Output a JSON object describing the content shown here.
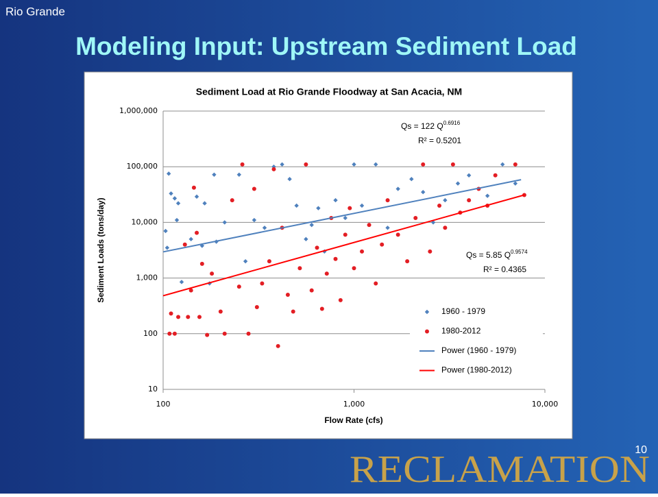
{
  "header": {
    "section": "Rio Grande",
    "title": "Modeling Input: Upstream Sediment Load",
    "page_number": "10",
    "logo": "RECLAMATION"
  },
  "chart_data": {
    "type": "scatter",
    "title": "Sediment Load at Rio Grande Floodway at San Acacia, NM",
    "x_label": "Flow Rate (cfs)",
    "y_label": "Sediment Loads (tons/day)",
    "xscale": "log",
    "yscale": "log",
    "xlim": [
      100,
      10000
    ],
    "ylim": [
      10,
      1000000
    ],
    "xticks": [
      100,
      {
        "value": 1000,
        "label": "1,000"
      },
      {
        "value": 10000,
        "label": "10,000"
      }
    ],
    "yticks": [
      10,
      100,
      {
        "value": 1000,
        "label": "1,000"
      },
      {
        "value": 10000,
        "label": "10,000"
      },
      {
        "value": 100000,
        "label": "100,000"
      },
      {
        "value": 1000000,
        "label": "1,000,000"
      }
    ],
    "grid": true,
    "legend": "lower right",
    "annotations": [
      {
        "text": "Qs = 122 Q",
        "sup": "0.6916",
        "r2": "R² = 0.5201"
      },
      {
        "text": "Qs = 5.85 Q",
        "sup": "0.9574",
        "r2": "R² = 0.4365"
      }
    ],
    "series": [
      {
        "name": "1960 - 1979",
        "mark": "diamond",
        "color": "#4f81bd",
        "x": [
          103,
          105,
          107,
          110,
          115,
          118,
          120,
          125,
          140,
          150,
          160,
          165,
          175,
          185,
          190,
          210,
          250,
          270,
          300,
          340,
          380,
          420,
          460,
          500,
          560,
          600,
          650,
          700,
          800,
          900,
          1000,
          1100,
          1300,
          1500,
          1700,
          2000,
          2300,
          2600,
          3000,
          3500,
          4000,
          5000,
          6000,
          7000
        ],
        "values": [
          7000,
          3500,
          75000,
          33000,
          27000,
          11000,
          22000,
          850,
          5000,
          29000,
          3800,
          22000,
          800,
          72000,
          4500,
          10000,
          72000,
          2000,
          11000,
          8000,
          100000,
          110000,
          60000,
          20000,
          5000,
          9000,
          18000,
          3000,
          25000,
          12000,
          110000,
          20000,
          110000,
          8000,
          40000,
          60000,
          35000,
          10000,
          25000,
          50000,
          70000,
          30000,
          110000,
          50000
        ]
      },
      {
        "name": "1980-2012",
        "mark": "circle",
        "color": "#e31e24",
        "x": [
          108,
          110,
          115,
          120,
          130,
          135,
          140,
          145,
          150,
          155,
          160,
          170,
          180,
          200,
          210,
          230,
          250,
          260,
          280,
          300,
          310,
          330,
          360,
          380,
          400,
          420,
          450,
          480,
          520,
          560,
          600,
          640,
          680,
          720,
          760,
          800,
          850,
          900,
          950,
          1000,
          1100,
          1200,
          1300,
          1400,
          1500,
          1700,
          1900,
          2100,
          2300,
          2500,
          2800,
          3000,
          3300,
          3600,
          4000,
          4500,
          5000,
          5500,
          7000,
          7800
        ],
        "values": [
          100,
          230,
          100,
          200,
          4000,
          200,
          600,
          42000,
          6500,
          200,
          1800,
          95,
          1200,
          250,
          100,
          25000,
          700,
          110000,
          100,
          40000,
          300,
          800,
          2000,
          90000,
          60,
          8000,
          500,
          250,
          1500,
          110000,
          600,
          3500,
          280,
          1200,
          12000,
          2200,
          400,
          6000,
          18000,
          1500,
          3000,
          9000,
          800,
          4000,
          25000,
          6000,
          2000,
          12000,
          110000,
          3000,
          20000,
          8000,
          110000,
          15000,
          25000,
          40000,
          20000,
          70000,
          110000,
          31000
        ]
      },
      {
        "name": "Power (1960 - 1979)",
        "mark": "line",
        "color": "#4f81bd",
        "x": [
          100,
          7500
        ],
        "values": [
          2950,
          58400
        ]
      },
      {
        "name": "Power (1980-2012)",
        "mark": "line",
        "color": "#ff0000",
        "x": [
          100,
          7800
        ],
        "values": [
          481,
          31100
        ]
      }
    ]
  }
}
